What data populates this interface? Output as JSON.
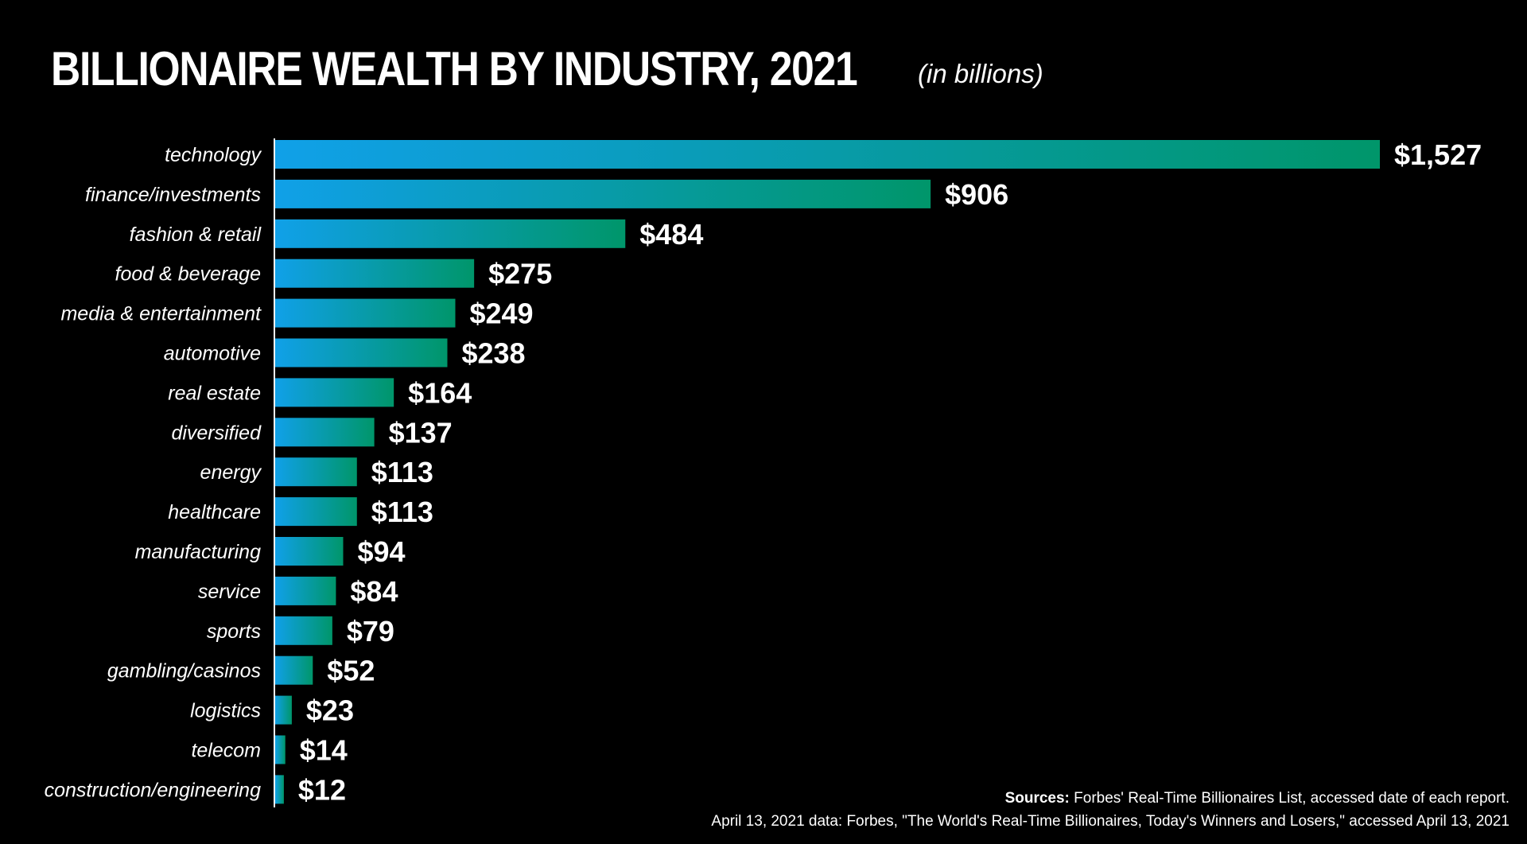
{
  "title": "BILLIONAIRE WEALTH BY INDUSTRY, 2021",
  "subtitle": "(in billions)",
  "colors": {
    "background": "#000000",
    "bar_start": "#10a0e8",
    "bar_end": "#00966a",
    "text": "#ffffff"
  },
  "chart_data": {
    "type": "bar",
    "orientation": "horizontal",
    "title": "BILLIONAIRE WEALTH BY INDUSTRY, 2021",
    "subtitle": "(in billions)",
    "categories": [
      "technology",
      "finance/investments",
      "fashion & retail",
      "food & beverage",
      "media & entertainment",
      "automotive",
      "real estate",
      "diversified",
      "energy",
      "healthcare",
      "manufacturing",
      "service",
      "sports",
      "gambling/casinos",
      "logistics",
      "telecom",
      "construction/engineering"
    ],
    "values": [
      1527,
      906,
      484,
      275,
      249,
      238,
      164,
      137,
      113,
      113,
      94,
      84,
      79,
      52,
      23,
      14,
      12
    ],
    "value_labels": [
      "$1,527",
      "$906",
      "$484",
      "$275",
      "$249",
      "$238",
      "$164",
      "$137",
      "$113",
      "$113",
      "$94",
      "$84",
      "$79",
      "$52",
      "$23",
      "$14",
      "$12"
    ],
    "xlim": [
      0,
      1527
    ],
    "grid": false,
    "legend": "none"
  },
  "footer": {
    "sources_label": "Sources:",
    "sources_text": " Forbes' Real-Time Billionaires List, accessed date of each report.",
    "data_note": "April 13, 2021 data: Forbes, \"The World's Real-Time Billionaires, Today's Winners and Losers,\" accessed April 13, 2021"
  }
}
